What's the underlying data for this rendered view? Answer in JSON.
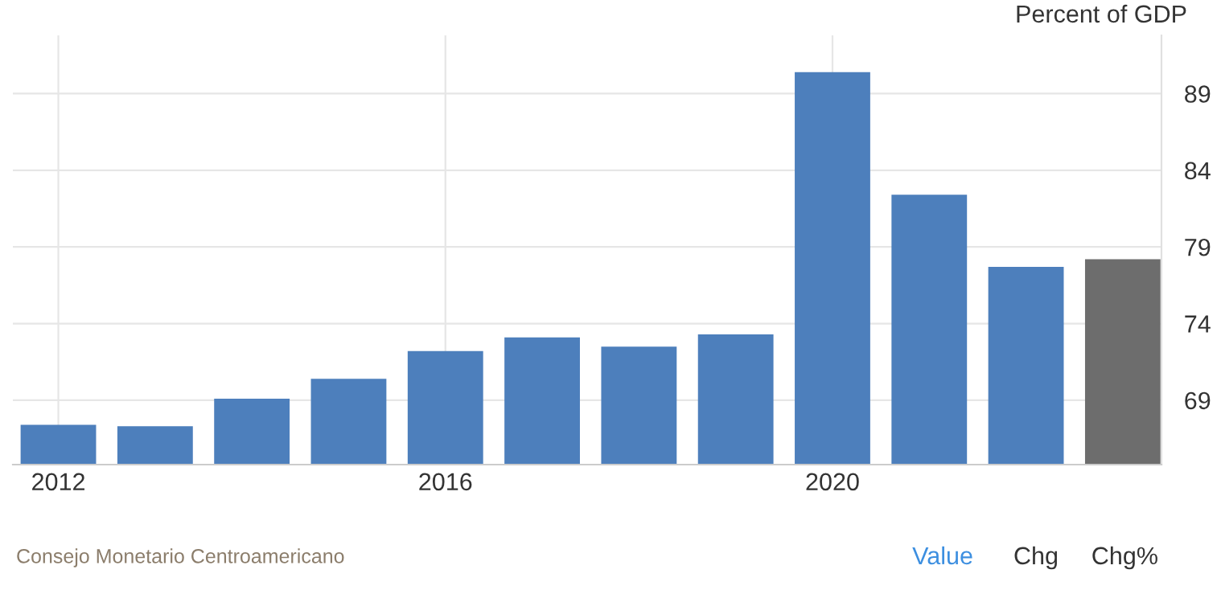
{
  "chart_data": {
    "type": "bar",
    "ylabel": "Percent of GDP",
    "x": [
      2012,
      2013,
      2014,
      2015,
      2016,
      2017,
      2018,
      2019,
      2020,
      2021,
      2022,
      2023
    ],
    "values": [
      67.4,
      67.3,
      69.1,
      70.4,
      72.2,
      73.1,
      72.5,
      73.3,
      90.4,
      82.4,
      77.7,
      78.2
    ],
    "colors": [
      "#4d7fbc",
      "#4d7fbc",
      "#4d7fbc",
      "#4d7fbc",
      "#4d7fbc",
      "#4d7fbc",
      "#4d7fbc",
      "#4d7fbc",
      "#4d7fbc",
      "#4d7fbc",
      "#4d7fbc",
      "#6d6d6d"
    ],
    "xlim": [
      2011.53,
      2023.4
    ],
    "xticks": [
      2012,
      2016,
      2020
    ],
    "ylim": [
      64.8,
      92.8
    ],
    "yticks": [
      69,
      74,
      79,
      84,
      89
    ],
    "grid": true,
    "annotations": [
      "Consejo Monetario Centroamericano",
      "Value",
      "Chg",
      "Chg%"
    ]
  }
}
